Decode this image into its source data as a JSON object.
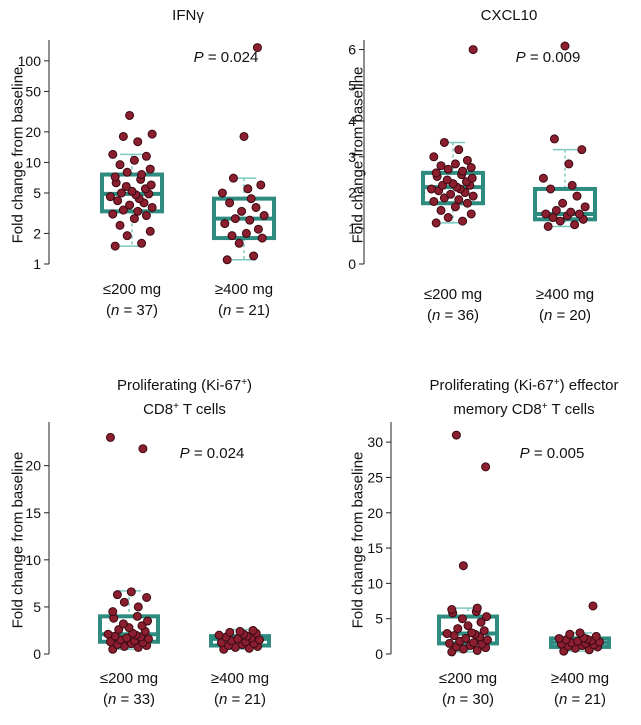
{
  "colors": {
    "box": "#2e8b80",
    "whisker": "#7ec9c0",
    "point_fill": "#8b1e2f",
    "point_stroke": "#3a0a12"
  },
  "chart_data": [
    {
      "type": "box",
      "title": "IFNγ",
      "title_sup": "",
      "title_line2": "",
      "ylabel": "Fold change from baseline",
      "yscale": "log",
      "ylim": [
        1,
        140
      ],
      "yticks": [
        1,
        2,
        5,
        10,
        20,
        50,
        100
      ],
      "ytick_labels": [
        "1",
        "2",
        "5",
        "10",
        "20",
        "50",
        "100"
      ],
      "p_label": "P",
      "p_value": " = 0.024",
      "groups": [
        {
          "label": "≤200 mg",
          "n_label": "n",
          "n_value": " = 37)",
          "min": 1.5,
          "q1": 3.3,
          "median": 4.9,
          "q3": 7.6,
          "max": 12,
          "points": [
            1.5,
            1.6,
            1.9,
            2.1,
            2.4,
            2.8,
            3.0,
            3.1,
            3.3,
            3.4,
            3.6,
            3.8,
            4.0,
            4.2,
            4.4,
            4.6,
            4.8,
            4.9,
            5.0,
            5.2,
            5.5,
            5.8,
            6.0,
            6.3,
            6.8,
            7.2,
            7.6,
            8.0,
            8.6,
            9.5,
            10.5,
            11.5,
            12,
            16,
            18,
            19,
            29
          ]
        },
        {
          "label": "≥400 mg",
          "n_label": "n",
          "n_value": " = 21)",
          "min": 1.1,
          "q1": 1.8,
          "median": 2.8,
          "q3": 4.4,
          "max": 7,
          "points": [
            1.1,
            1.2,
            1.6,
            1.8,
            1.9,
            2.0,
            2.2,
            2.5,
            2.7,
            2.8,
            3.0,
            3.3,
            3.6,
            4.0,
            4.4,
            5.0,
            5.5,
            6.0,
            7.0,
            18,
            135
          ]
        }
      ]
    },
    {
      "type": "box",
      "title": "CXCL10",
      "title_sup": "",
      "title_line2": "",
      "ylabel": "Fold change from baseline",
      "yscale": "linear",
      "ylim": [
        0,
        6.1
      ],
      "yticks": [
        0,
        1,
        2,
        3,
        4,
        5,
        6
      ],
      "ytick_labels": [
        "0",
        "1",
        "2",
        "3",
        "4",
        "5",
        "6"
      ],
      "p_label": "P",
      "p_value": " = 0.009",
      "groups": [
        {
          "label": "≤200 mg",
          "n_label": "n",
          "n_value": " = 36)",
          "min": 1.15,
          "q1": 1.7,
          "median": 2.15,
          "q3": 2.55,
          "max": 3.4,
          "points": [
            1.15,
            1.2,
            1.3,
            1.4,
            1.5,
            1.6,
            1.7,
            1.75,
            1.8,
            1.85,
            1.9,
            1.95,
            2.0,
            2.05,
            2.1,
            2.1,
            2.15,
            2.2,
            2.2,
            2.25,
            2.3,
            2.35,
            2.4,
            2.45,
            2.5,
            2.55,
            2.6,
            2.65,
            2.7,
            2.75,
            2.8,
            2.9,
            3.0,
            3.2,
            3.4,
            6.0
          ]
        },
        {
          "label": "≥400 mg",
          "n_label": "n",
          "n_value": " = 20)",
          "min": 1.05,
          "q1": 1.25,
          "median": 1.4,
          "q3": 2.1,
          "max": 3.2,
          "points": [
            1.05,
            1.1,
            1.2,
            1.25,
            1.3,
            1.35,
            1.4,
            1.4,
            1.45,
            1.5,
            1.6,
            1.7,
            1.9,
            2.1,
            2.2,
            2.4,
            2.8,
            3.2,
            3.5,
            6.1
          ]
        }
      ]
    },
    {
      "type": "box",
      "title": "Proliferating (Ki-67",
      "title_sup": "+",
      "title_end": ")",
      "title_line2": "CD8",
      "title_line2_sup": "+",
      "title_line2_end": " T cells",
      "ylabel": "Fold change from baseline",
      "yscale": "linear",
      "ylim": [
        0,
        24
      ],
      "yticks": [
        0,
        5,
        10,
        15,
        20
      ],
      "ytick_labels": [
        "0",
        "5",
        "10",
        "15",
        "20"
      ],
      "p_label": "P",
      "p_value": " = 0.024",
      "groups": [
        {
          "label": "≤200 mg",
          "n_label": "n",
          "n_value": " = 33)",
          "min": 0.5,
          "q1": 1.3,
          "median": 2.1,
          "q3": 4.0,
          "max": 6.7,
          "points": [
            0.5,
            0.7,
            0.8,
            0.9,
            1.0,
            1.1,
            1.2,
            1.3,
            1.4,
            1.5,
            1.6,
            1.7,
            1.8,
            1.9,
            2.0,
            2.1,
            2.2,
            2.4,
            2.6,
            2.8,
            3.0,
            3.2,
            3.5,
            3.8,
            4.0,
            4.5,
            5.0,
            5.5,
            6.0,
            6.3,
            6.6,
            21.8,
            23.0
          ]
        },
        {
          "label": "≥400 mg",
          "n_label": "n",
          "n_value": " = 21)",
          "min": 0.5,
          "q1": 0.9,
          "median": 1.6,
          "q3": 1.9,
          "max": 2.6,
          "points": [
            0.5,
            0.6,
            0.7,
            0.8,
            0.9,
            1.0,
            1.1,
            1.2,
            1.3,
            1.4,
            1.5,
            1.6,
            1.7,
            1.8,
            1.9,
            2.0,
            2.1,
            2.2,
            2.3,
            2.4,
            2.5
          ]
        }
      ]
    },
    {
      "type": "box",
      "title": "Proliferating (Ki-67",
      "title_sup": "+",
      "title_end": ") effector",
      "title_line2": "memory CD8",
      "title_line2_sup": "+",
      "title_line2_end": " T cells",
      "ylabel": "Fold change from baseline",
      "yscale": "linear",
      "ylim": [
        0,
        32
      ],
      "yticks": [
        0,
        5,
        10,
        15,
        20,
        25,
        30
      ],
      "ytick_labels": [
        "0",
        "5",
        "10",
        "15",
        "20",
        "25",
        "30"
      ],
      "p_label": "P",
      "p_value": " = 0.005",
      "groups": [
        {
          "label": "≤200 mg",
          "n_label": "n",
          "n_value": " = 30)",
          "min": 0.3,
          "q1": 1.5,
          "median": 2.9,
          "q3": 5.3,
          "max": 6.5,
          "points": [
            0.3,
            0.5,
            0.7,
            0.9,
            1.0,
            1.2,
            1.4,
            1.5,
            1.6,
            1.8,
            2.0,
            2.2,
            2.4,
            2.6,
            2.8,
            2.9,
            3.0,
            3.3,
            3.6,
            4.0,
            4.5,
            5.0,
            5.3,
            5.8,
            6.0,
            6.3,
            6.5,
            12.5,
            26.5,
            31.0
          ]
        },
        {
          "label": "≥400 mg",
          "n_label": "n",
          "n_value": " = 21)",
          "min": 0.4,
          "q1": 1.0,
          "median": 1.6,
          "q3": 2.2,
          "max": 3.0,
          "points": [
            0.4,
            0.6,
            0.8,
            1.0,
            1.1,
            1.2,
            1.3,
            1.4,
            1.5,
            1.6,
            1.7,
            1.8,
            1.9,
            2.0,
            2.1,
            2.2,
            2.3,
            2.5,
            2.8,
            3.0,
            6.8
          ]
        }
      ]
    }
  ]
}
